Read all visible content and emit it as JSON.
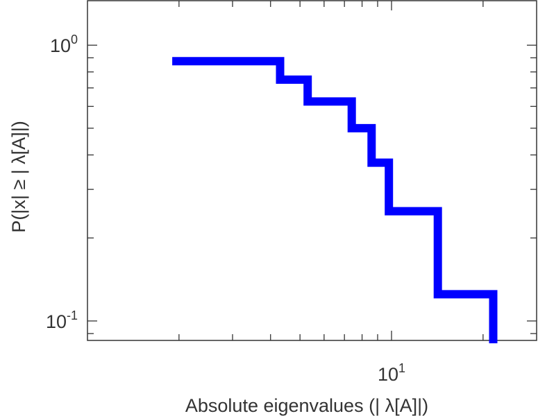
{
  "chart_data": {
    "type": "line",
    "subtype": "step",
    "xscale": "log",
    "yscale": "log",
    "xlabel": "Absolute eigenvalues (|     λ[A]|)",
    "ylabel": "P(|x|  ≥ | λ[A]|)",
    "xlim": [
      1.0,
      30.0
    ],
    "ylim": [
      0.085,
      1.45
    ],
    "grid": false,
    "legend": "none",
    "xticks": [
      {
        "base": "10",
        "exp": "1",
        "value": 10
      }
    ],
    "yticks": [
      {
        "base": "10",
        "exp": "0",
        "value": 1.0
      },
      {
        "base": "10",
        "exp": "-1",
        "value": 0.1
      }
    ],
    "series": [
      {
        "color": "#0000ff",
        "x": [
          1.9,
          4.3,
          4.3,
          5.3,
          5.3,
          7.4,
          7.4,
          8.6,
          8.6,
          9.8,
          9.8,
          14.2,
          14.2,
          21.6,
          21.6
        ],
        "y": [
          0.875,
          0.875,
          0.75,
          0.75,
          0.625,
          0.625,
          0.5,
          0.5,
          0.375,
          0.375,
          0.25,
          0.25,
          0.125,
          0.125,
          0.083
        ]
      }
    ]
  }
}
